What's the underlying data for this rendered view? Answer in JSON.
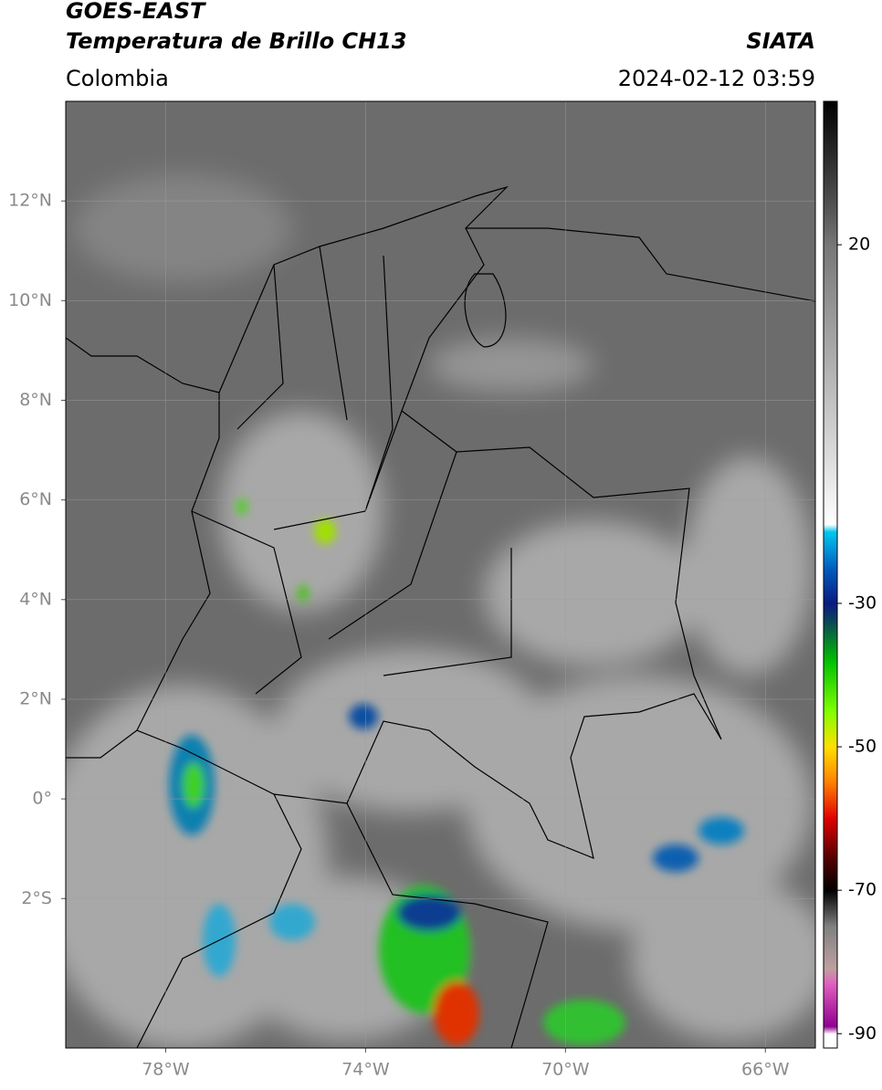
{
  "chart_data": {
    "type": "map",
    "title": "GOES-EAST",
    "subtitle": "Temperatura de Brillo CH13",
    "source": "SIATA",
    "region": "Colombia",
    "timestamp": "2024-02-12 03:59",
    "xlim": [
      -80,
      -65
    ],
    "ylim": [
      -5,
      14
    ],
    "xticks": [
      {
        "value": -78,
        "label": "78°W"
      },
      {
        "value": -74,
        "label": "74°W"
      },
      {
        "value": -70,
        "label": "70°W"
      },
      {
        "value": -66,
        "label": "66°W"
      }
    ],
    "yticks": [
      {
        "value": 12,
        "label": "12°N"
      },
      {
        "value": 10,
        "label": "10°N"
      },
      {
        "value": 8,
        "label": "8°N"
      },
      {
        "value": 6,
        "label": "6°N"
      },
      {
        "value": 4,
        "label": "4°N"
      },
      {
        "value": 2,
        "label": "2°N"
      },
      {
        "value": 0,
        "label": "0°"
      },
      {
        "value": -2,
        "label": "2°S"
      }
    ],
    "grid": true,
    "colorbar": {
      "lim": [
        -92,
        40
      ],
      "ticks": [
        20,
        -30,
        -50,
        -70,
        -90
      ],
      "colormap": [
        {
          "value": 40,
          "color": "#000000"
        },
        {
          "value": 25,
          "color": "#555555"
        },
        {
          "value": 20,
          "color": "#777777"
        },
        {
          "value": -10,
          "color": "#dddddd"
        },
        {
          "value": -19,
          "color": "#ffffff"
        },
        {
          "value": -20,
          "color": "#00c8f0"
        },
        {
          "value": -25,
          "color": "#0060c0"
        },
        {
          "value": -30,
          "color": "#0a1a80"
        },
        {
          "value": -33,
          "color": "#0a5050"
        },
        {
          "value": -38,
          "color": "#00c000"
        },
        {
          "value": -45,
          "color": "#80ff00"
        },
        {
          "value": -50,
          "color": "#ffe000"
        },
        {
          "value": -55,
          "color": "#ff8000"
        },
        {
          "value": -60,
          "color": "#e00000"
        },
        {
          "value": -65,
          "color": "#600000"
        },
        {
          "value": -70,
          "color": "#000000"
        },
        {
          "value": -75,
          "color": "#808080"
        },
        {
          "value": -81,
          "color": "#c0a0a0"
        },
        {
          "value": -83,
          "color": "#e060c0"
        },
        {
          "value": -89,
          "color": "#900090"
        },
        {
          "value": -90,
          "color": "#ffffff"
        }
      ]
    }
  }
}
